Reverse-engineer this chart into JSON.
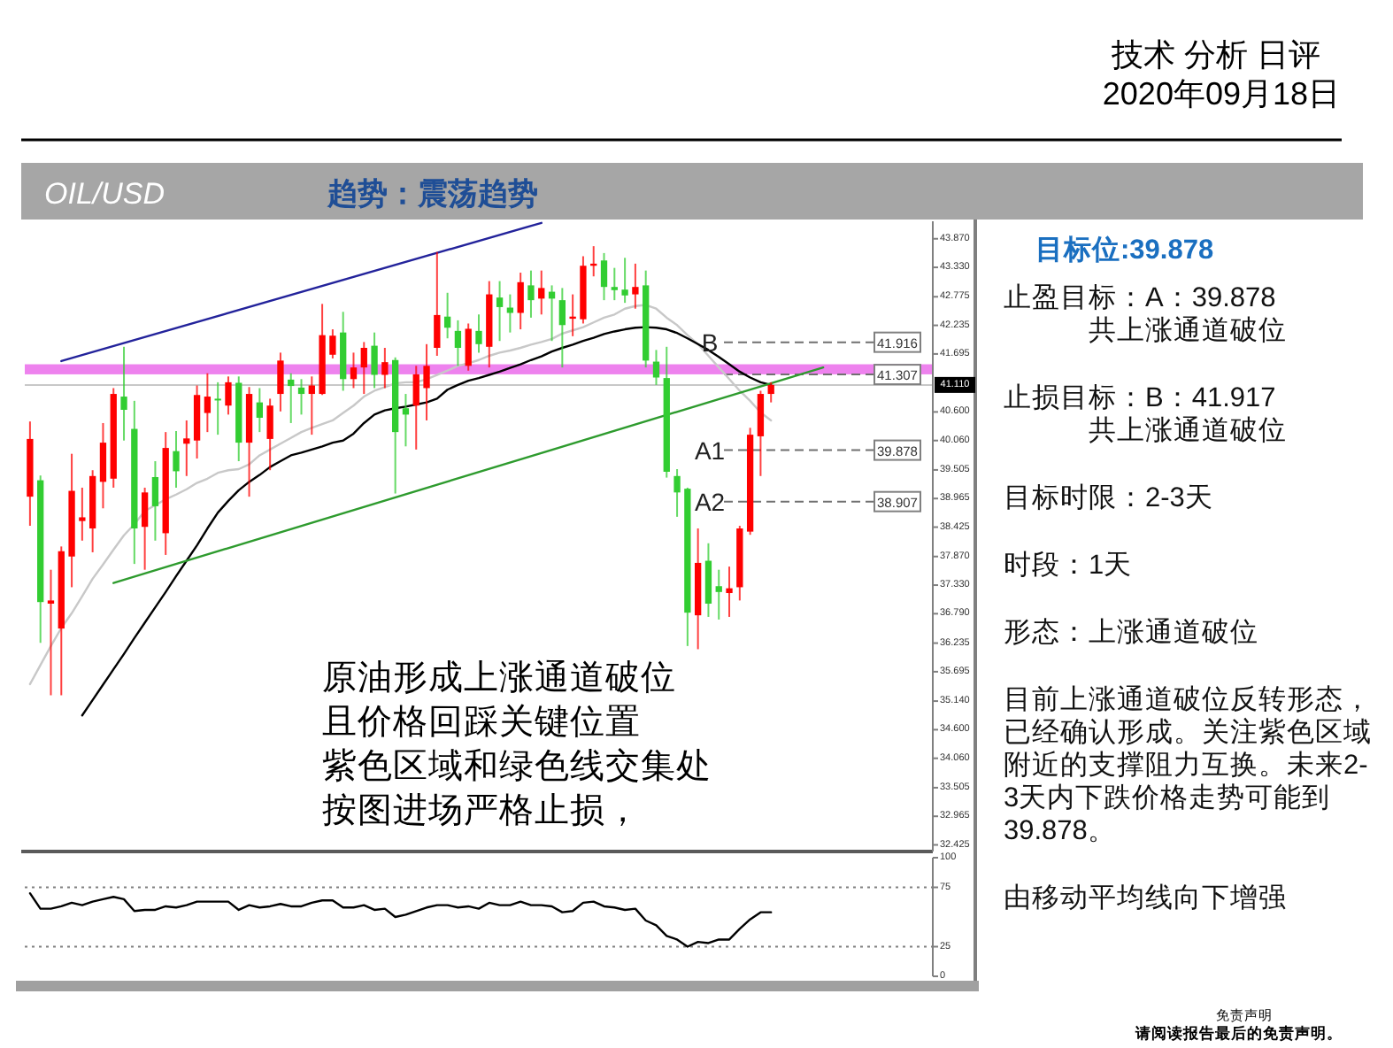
{
  "chart_data": [
    {
      "type": "candlestick",
      "title": "OIL/USD",
      "subtitle": "趋势：震荡趋势",
      "categories": [
        null,
        null,
        null,
        null,
        null,
        null,
        null,
        null,
        null,
        null,
        null,
        null,
        null,
        null,
        null,
        null,
        null,
        null,
        null,
        null,
        null,
        null,
        null,
        null,
        null,
        null,
        null,
        null,
        null,
        null,
        null,
        null,
        null,
        null,
        null,
        null,
        null,
        null,
        null,
        null,
        null,
        null,
        null,
        null,
        null,
        null,
        null,
        null,
        null,
        null,
        null,
        null,
        null,
        null,
        null,
        null,
        null,
        null,
        null,
        null,
        null,
        null,
        null,
        null,
        null,
        null,
        null,
        null,
        null,
        null,
        null,
        null,
        null,
        null,
        null,
        null,
        null,
        null,
        null,
        null,
        null,
        null,
        null,
        null,
        null,
        null,
        null
      ],
      "ohlc": [
        [
          39.0,
          40.42,
          38.45,
          40.09
        ],
        [
          39.31,
          39.4,
          36.24,
          37.01
        ],
        [
          36.98,
          37.62,
          35.25,
          37.04
        ],
        [
          36.51,
          38.06,
          35.25,
          37.97
        ],
        [
          37.87,
          39.81,
          37.29,
          39.11
        ],
        [
          38.54,
          39.17,
          38.17,
          38.61
        ],
        [
          38.4,
          39.5,
          37.95,
          39.39
        ],
        [
          39.28,
          40.39,
          38.78,
          40.02
        ],
        [
          39.34,
          41.05,
          39.17,
          40.94
        ],
        [
          40.89,
          41.83,
          40.06,
          40.64
        ],
        [
          40.28,
          40.81,
          37.73,
          38.4
        ],
        [
          38.43,
          39.17,
          37.62,
          39.08
        ],
        [
          39.37,
          39.67,
          38.17,
          38.82
        ],
        [
          38.31,
          40.22,
          37.9,
          39.92
        ],
        [
          39.86,
          40.24,
          39.17,
          39.48
        ],
        [
          40.0,
          40.44,
          39.39,
          40.1
        ],
        [
          40.06,
          41.1,
          39.72,
          40.92
        ],
        [
          40.58,
          41.33,
          40.22,
          40.89
        ],
        [
          40.85,
          41.16,
          40.17,
          40.83
        ],
        [
          40.72,
          41.27,
          40.55,
          41.16
        ],
        [
          41.15,
          41.27,
          39.67,
          40.02
        ],
        [
          40.02,
          41.07,
          39.0,
          40.94
        ],
        [
          40.78,
          41.05,
          40.22,
          40.49
        ],
        [
          40.09,
          40.85,
          39.5,
          40.72
        ],
        [
          40.94,
          41.72,
          40.61,
          41.57
        ],
        [
          41.21,
          41.33,
          40.39,
          41.09
        ],
        [
          41.06,
          41.22,
          40.55,
          40.94
        ],
        [
          40.94,
          41.27,
          40.17,
          41.1
        ],
        [
          40.94,
          42.64,
          40.92,
          42.05
        ],
        [
          41.68,
          42.16,
          41.61,
          42.04
        ],
        [
          42.1,
          42.49,
          41.0,
          41.22
        ],
        [
          41.22,
          41.72,
          41.05,
          41.44
        ],
        [
          41.44,
          41.92,
          40.94,
          41.81
        ],
        [
          41.85,
          42.1,
          41.05,
          41.3
        ],
        [
          41.3,
          41.81,
          41.05,
          41.54
        ],
        [
          41.58,
          41.63,
          39.06,
          40.22
        ],
        [
          40.67,
          40.94,
          39.95,
          40.55
        ],
        [
          40.72,
          41.47,
          39.89,
          41.31
        ],
        [
          41.05,
          41.88,
          40.44,
          41.47
        ],
        [
          41.81,
          43.62,
          41.66,
          42.43
        ],
        [
          42.4,
          42.85,
          41.99,
          42.19
        ],
        [
          42.13,
          42.33,
          41.47,
          41.81
        ],
        [
          41.47,
          42.27,
          41.38,
          42.17
        ],
        [
          42.13,
          42.44,
          41.72,
          41.88
        ],
        [
          41.83,
          43.07,
          41.44,
          42.82
        ],
        [
          42.76,
          43.07,
          41.94,
          42.58
        ],
        [
          42.57,
          42.82,
          42.1,
          42.47
        ],
        [
          42.47,
          43.23,
          42.16,
          43.05
        ],
        [
          42.99,
          43.27,
          42.38,
          42.71
        ],
        [
          42.74,
          43.27,
          42.44,
          42.94
        ],
        [
          42.87,
          42.99,
          41.94,
          42.74
        ],
        [
          42.71,
          42.94,
          41.44,
          42.24
        ],
        [
          42.36,
          42.82,
          42.03,
          42.4
        ],
        [
          42.35,
          43.54,
          42.27,
          43.36
        ],
        [
          43.36,
          43.73,
          43.16,
          43.4
        ],
        [
          43.46,
          43.6,
          42.71,
          42.96
        ],
        [
          42.96,
          43.32,
          42.71,
          42.9
        ],
        [
          42.91,
          43.51,
          42.66,
          42.8
        ],
        [
          42.82,
          43.4,
          42.55,
          42.96
        ],
        [
          42.99,
          43.27,
          41.44,
          41.57
        ],
        [
          41.55,
          41.77,
          41.11,
          41.25
        ],
        [
          41.24,
          41.83,
          39.36,
          39.47
        ],
        [
          39.39,
          39.52,
          38.62,
          39.08
        ],
        [
          39.15,
          39.17,
          36.18,
          36.81
        ],
        [
          36.76,
          38.4,
          36.12,
          37.75
        ],
        [
          37.79,
          38.12,
          36.73,
          36.98
        ],
        [
          37.31,
          37.62,
          36.68,
          37.2
        ],
        [
          37.18,
          37.68,
          36.73,
          37.27
        ],
        [
          37.29,
          38.45,
          37.04,
          38.4
        ],
        [
          38.34,
          40.3,
          38.28,
          40.17
        ],
        [
          40.14,
          41.0,
          39.39,
          40.94
        ],
        [
          40.94,
          41.16,
          40.78,
          41.11
        ],
        null,
        null,
        null,
        null,
        null,
        null,
        null,
        null,
        null,
        null,
        null,
        null,
        null,
        null,
        null
      ],
      "colors": [
        "#ff0000",
        "#32cd32",
        "#ff0000",
        "#ff0000",
        "#ff0000",
        "#ff0000",
        "#ff0000",
        "#ff0000",
        "#ff0000",
        "#32cd32",
        "#32cd32",
        "#ff0000",
        "#32cd32",
        "#ff0000",
        "#32cd32",
        "#ff0000",
        "#ff0000",
        "#ff0000",
        "#32cd32",
        "#ff0000",
        "#32cd32",
        "#ff0000",
        "#32cd32",
        "#ff0000",
        "#ff0000",
        "#32cd32",
        "#32cd32",
        "#ff0000",
        "#ff0000",
        "#ff0000",
        "#32cd32",
        "#ff0000",
        "#ff0000",
        "#32cd32",
        "#ff0000",
        "#32cd32",
        "#32cd32",
        "#ff0000",
        "#ff0000",
        "#ff0000",
        "#32cd32",
        "#32cd32",
        "#ff0000",
        "#32cd32",
        "#ff0000",
        "#32cd32",
        "#32cd32",
        "#ff0000",
        "#32cd32",
        "#ff0000",
        "#32cd32",
        "#32cd32",
        "#ff0000",
        "#ff0000",
        "#ff0000",
        "#32cd32",
        "#32cd32",
        "#32cd32",
        "#ff0000",
        "#32cd32",
        "#32cd32",
        "#32cd32",
        "#32cd32",
        "#32cd32",
        "#ff0000",
        "#32cd32",
        "#32cd32",
        "#ff0000",
        "#ff0000",
        "#ff0000",
        "#ff0000",
        "#ff0000",
        null,
        null,
        null,
        null,
        null,
        null,
        null,
        null,
        null,
        null,
        null,
        null,
        null,
        null,
        null
      ],
      "series": [
        {
          "type": "line",
          "color": "#c8c8c8",
          "values": [
            35.46,
            35.82,
            36.18,
            36.52,
            36.8,
            37.12,
            37.45,
            37.72,
            38.0,
            38.27,
            38.48,
            38.73,
            38.84,
            38.95,
            39.04,
            39.14,
            39.26,
            39.34,
            39.45,
            39.5,
            39.52,
            39.61,
            39.78,
            39.89,
            40.0,
            40.11,
            40.22,
            40.3,
            40.37,
            40.44,
            40.58,
            40.72,
            40.89,
            41.0,
            41.07,
            41.14,
            41.16,
            41.16,
            41.22,
            41.3,
            41.38,
            41.47,
            41.52,
            41.58,
            41.66,
            41.72,
            41.76,
            41.81,
            41.87,
            41.92,
            41.98,
            42.08,
            42.14,
            42.2,
            42.29,
            42.38,
            42.44,
            42.55,
            42.6,
            42.62,
            42.55,
            42.38,
            42.24,
            42.05,
            41.88,
            41.66,
            41.44,
            41.22,
            41.0,
            40.81,
            40.59,
            40.44,
            null,
            null,
            null,
            null,
            null,
            null,
            null,
            null,
            null,
            null,
            null,
            null,
            null,
            null,
            null
          ]
        },
        {
          "type": "line",
          "color": "#000000",
          "values": [
            null,
            null,
            null,
            null,
            null,
            34.87,
            35.16,
            35.45,
            35.74,
            36.03,
            36.33,
            36.62,
            36.91,
            37.2,
            37.5,
            37.79,
            38.08,
            38.4,
            38.7,
            38.92,
            39.12,
            39.28,
            39.41,
            39.56,
            39.67,
            39.78,
            39.83,
            39.89,
            39.95,
            40.02,
            40.06,
            40.19,
            40.39,
            40.55,
            40.63,
            40.67,
            40.7,
            40.74,
            40.78,
            40.85,
            41.02,
            41.11,
            41.19,
            41.24,
            41.3,
            41.36,
            41.43,
            41.5,
            41.58,
            41.65,
            41.74,
            41.81,
            41.87,
            41.94,
            42.0,
            42.07,
            42.12,
            42.16,
            42.19,
            42.2,
            42.19,
            42.16,
            42.09,
            41.99,
            41.88,
            41.77,
            41.64,
            41.5,
            41.36,
            41.25,
            41.16,
            41.11,
            null,
            null,
            null,
            null,
            null,
            null,
            null,
            null,
            null,
            null,
            null,
            null,
            null,
            null,
            null
          ]
        },
        {
          "type": "line",
          "color": "#23239b",
          "values": [
            null,
            null,
            null,
            41.56,
            null,
            null,
            null,
            null,
            null,
            null,
            null,
            null,
            null,
            null,
            null,
            null,
            null,
            null,
            null,
            null,
            null,
            null,
            null,
            null,
            null,
            null,
            null,
            null,
            null,
            null,
            null,
            null,
            null,
            null,
            null,
            null,
            null,
            null,
            null,
            null,
            null,
            null,
            null,
            null,
            null,
            null,
            null,
            null,
            null,
            44.17,
            null,
            null,
            null,
            null,
            null,
            null,
            null,
            null,
            null,
            null,
            null,
            null,
            null,
            null,
            null,
            null,
            null,
            null,
            null,
            null,
            null,
            null,
            null,
            null,
            null,
            null,
            null,
            null,
            null,
            null,
            null,
            null,
            null,
            null,
            null,
            null,
            null
          ]
        },
        {
          "type": "line",
          "color": "#2e9b2e",
          "values": [
            null,
            null,
            null,
            null,
            null,
            null,
            null,
            null,
            37.37,
            null,
            null,
            null,
            null,
            null,
            null,
            null,
            null,
            null,
            null,
            null,
            null,
            null,
            null,
            null,
            null,
            null,
            null,
            null,
            null,
            null,
            null,
            null,
            null,
            null,
            null,
            null,
            null,
            null,
            null,
            null,
            null,
            null,
            null,
            null,
            null,
            null,
            null,
            null,
            null,
            null,
            null,
            null,
            null,
            null,
            null,
            null,
            null,
            null,
            null,
            null,
            null,
            null,
            null,
            null,
            null,
            null,
            null,
            null,
            null,
            null,
            null,
            null,
            null,
            null,
            null,
            null,
            41.44,
            null,
            null,
            null,
            null,
            null,
            null,
            null,
            null,
            null,
            null
          ]
        }
      ],
      "ylim": [
        32.3,
        44.2
      ],
      "yticks": [
        32.425,
        32.965,
        33.505,
        {
          "value": 34.06,
          "label": "34.060"
        },
        {
          "value": 34.6,
          "label": "34.600"
        },
        {
          "value": 35.14,
          "label": "35.140"
        },
        35.695,
        36.235,
        {
          "value": 36.79,
          "label": "36.790"
        },
        {
          "value": 37.33,
          "label": "37.330"
        },
        {
          "value": 37.87,
          "label": "37.870"
        },
        38.425,
        38.965,
        39.505,
        {
          "value": 40.06,
          "label": "40.060"
        },
        {
          "value": 40.6,
          "label": "40.600"
        },
        41.695,
        42.235,
        42.775,
        {
          "value": 43.33,
          "label": "43.330"
        },
        {
          "value": 43.87,
          "label": "43.870"
        }
      ],
      "ref_lines": [
        {
          "axis": "y",
          "value": 41.916,
          "label": "41.916",
          "color": "#707070",
          "line_style": "dashed"
        },
        {
          "axis": "y",
          "value": 41.307,
          "label": "41.307",
          "color": "#707070",
          "line_style": "dashed"
        },
        {
          "axis": "y",
          "value": 39.878,
          "label": "39.878",
          "color": "#707070",
          "line_style": "dashed"
        },
        {
          "axis": "y",
          "value": 38.907,
          "label": "38.907",
          "color": "#707070",
          "line_style": "dashed"
        },
        {
          "axis": "y",
          "value": 41.11,
          "label": "41.110",
          "color": "#c8c8c8",
          "line_style": "solid"
        }
      ],
      "bands": [
        {
          "axis": "y",
          "from": 41.31,
          "to": 41.5,
          "color": "#ee82ee"
        }
      ],
      "tick_labels": "y",
      "annotations": [
        "技术 分析 日评",
        "2020年09月18日",
        "原油形成上涨通道破位",
        "且价格回踩关键位置",
        "紫色区域和绿色线交集处",
        "按图进场严格止损，",
        "免责声明",
        "请阅读报告最后的免责声明。",
        "B",
        "A1",
        "A2"
      ]
    },
    {
      "type": "line",
      "categories": [
        null,
        null,
        null,
        null,
        null,
        null,
        null,
        null,
        null,
        null,
        null,
        null,
        null,
        null,
        null,
        null,
        null,
        null,
        null,
        null,
        null,
        null,
        null,
        null,
        null,
        null,
        null,
        null,
        null,
        null,
        null,
        null,
        null,
        null,
        null,
        null,
        null,
        null,
        null,
        null,
        null,
        null,
        null,
        null,
        null,
        null,
        null,
        null,
        null,
        null,
        null,
        null,
        null,
        null,
        null,
        null,
        null,
        null,
        null,
        null,
        null,
        null,
        null,
        null,
        null,
        null,
        null,
        null,
        null,
        null,
        null,
        null,
        null,
        null,
        null,
        null,
        null,
        null,
        null,
        null,
        null,
        null,
        null,
        null,
        null,
        null,
        null
      ],
      "series": [
        {
          "color": "#000000",
          "values": [
            70,
            57,
            57,
            59,
            62,
            60,
            63,
            65,
            67,
            65,
            55,
            56,
            56,
            59,
            58,
            60,
            63,
            63,
            63,
            63,
            56,
            60,
            58,
            59,
            61,
            59,
            59,
            62,
            64,
            64,
            58,
            58,
            60,
            56,
            57,
            50,
            52,
            55,
            58,
            60,
            60,
            58,
            59,
            57,
            62,
            60,
            60,
            63,
            60,
            60,
            59,
            54,
            55,
            62,
            63,
            59,
            58,
            56,
            57,
            47,
            43,
            34,
            31,
            25,
            29,
            28,
            31,
            31,
            40,
            48,
            54,
            54,
            null,
            null,
            null,
            null,
            null,
            null,
            null,
            null,
            null,
            null,
            null,
            null,
            null,
            null,
            null
          ]
        }
      ],
      "ylim": [
        0,
        100
      ],
      "yticks": [
        0,
        25,
        75,
        100
      ],
      "ref_lines": [
        {
          "axis": "y",
          "value": 75,
          "color": "#808080",
          "line_style": "dotted"
        },
        {
          "axis": "y",
          "value": 25,
          "color": "#808080",
          "line_style": "dotted"
        }
      ],
      "tick_labels": "y"
    },
    {
      "type": "other",
      "title": "目标位:39.878",
      "annotations": [
        "止盈目标：A：39.878\n共上涨通道破位",
        "止损目标：B：41.917\n共上涨通道破位",
        "目标时限：2-3天",
        "时段：1天",
        "形态：上涨通道破位",
        "目前上涨通道破位反转形态，已经确认形成。关注紫色区域附近的支撑阻力互换。未来2-3天内下跌价格走势可能到39.878。",
        "由移动平均线向下增强"
      ]
    }
  ]
}
